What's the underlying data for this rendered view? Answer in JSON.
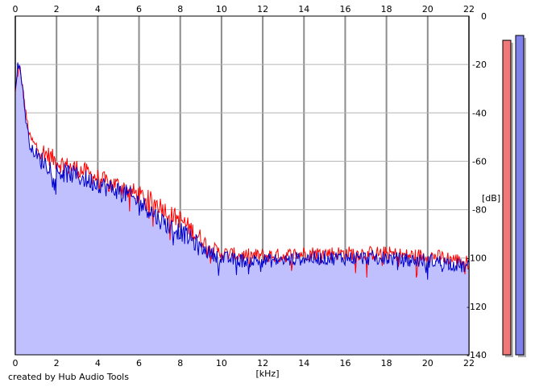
{
  "chart_data": {
    "type": "line",
    "xlabel": "[kHz]",
    "ylabel": "[dB]",
    "xlim": [
      0,
      22
    ],
    "ylim": [
      -140,
      0
    ],
    "x_ticks": [
      "0",
      "2",
      "4",
      "6",
      "8",
      "10",
      "12",
      "14",
      "16",
      "18",
      "20",
      "22"
    ],
    "y_ticks": [
      "0",
      "-20",
      "-40",
      "-60",
      "-80",
      "-100",
      "-120",
      "-140"
    ],
    "grid": true,
    "series": [
      {
        "color": "#ff0000",
        "points": [
          [
            0,
            -32
          ],
          [
            0.1,
            -24
          ],
          [
            0.2,
            -22
          ],
          [
            0.3,
            -26
          ],
          [
            0.5,
            -40
          ],
          [
            0.7,
            -50
          ],
          [
            1,
            -54
          ],
          [
            1.5,
            -57
          ],
          [
            2,
            -60
          ],
          [
            2.5,
            -62
          ],
          [
            3,
            -63
          ],
          [
            3.5,
            -65
          ],
          [
            4,
            -67
          ],
          [
            4.5,
            -69
          ],
          [
            5,
            -70
          ],
          [
            5.5,
            -72
          ],
          [
            6,
            -74
          ],
          [
            6.5,
            -76
          ],
          [
            7,
            -78
          ],
          [
            7.5,
            -82
          ],
          [
            8,
            -84
          ],
          [
            8.5,
            -88
          ],
          [
            9,
            -92
          ],
          [
            9.5,
            -96
          ],
          [
            10,
            -98
          ],
          [
            11,
            -99
          ],
          [
            12,
            -99
          ],
          [
            13,
            -99
          ],
          [
            14,
            -98
          ],
          [
            15,
            -98
          ],
          [
            16,
            -98
          ],
          [
            17,
            -98
          ],
          [
            18,
            -98
          ],
          [
            19,
            -99
          ],
          [
            20,
            -99
          ],
          [
            21,
            -100
          ],
          [
            22,
            -102
          ]
        ]
      },
      {
        "color": "#0000cc",
        "points": [
          [
            0,
            -30
          ],
          [
            0.1,
            -21
          ],
          [
            0.2,
            -20
          ],
          [
            0.3,
            -25
          ],
          [
            0.5,
            -42
          ],
          [
            0.7,
            -53
          ],
          [
            1,
            -58
          ],
          [
            1.5,
            -61
          ],
          [
            2,
            -64
          ],
          [
            2.5,
            -65
          ],
          [
            3,
            -66
          ],
          [
            3.5,
            -68
          ],
          [
            4,
            -69
          ],
          [
            4.5,
            -71
          ],
          [
            5,
            -72
          ],
          [
            5.5,
            -74
          ],
          [
            6,
            -77
          ],
          [
            6.5,
            -80
          ],
          [
            7,
            -84
          ],
          [
            7.5,
            -87
          ],
          [
            8,
            -89
          ],
          [
            8.5,
            -92
          ],
          [
            9,
            -96
          ],
          [
            9.5,
            -98
          ],
          [
            10,
            -100
          ],
          [
            11,
            -101
          ],
          [
            12,
            -101
          ],
          [
            13,
            -101
          ],
          [
            14,
            -100
          ],
          [
            15,
            -100
          ],
          [
            16,
            -100
          ],
          [
            17,
            -100
          ],
          [
            18,
            -100
          ],
          [
            19,
            -101
          ],
          [
            20,
            -101
          ],
          [
            21,
            -102
          ],
          [
            22,
            -104
          ]
        ]
      }
    ],
    "level_meters": [
      {
        "color": "#f07878",
        "level_db": -10
      },
      {
        "color": "#8080ec",
        "level_db": -8
      }
    ]
  },
  "footer": {
    "credit": "created by Hub Audio Tools"
  }
}
